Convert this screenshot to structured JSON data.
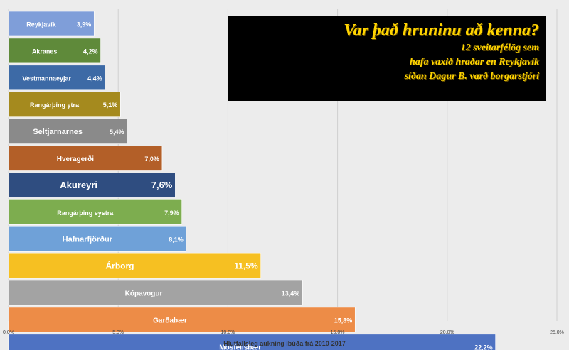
{
  "title_box": {
    "title": "Var það hruninu að kenna?",
    "line1": "12 sveitarfélög sem",
    "line2": "hafa vaxið hraðar en Reykjavík",
    "line3": "síðan Dagur B. varð borgarstjóri"
  },
  "chart_data": {
    "type": "bar",
    "orientation": "horizontal",
    "xlabel": "Hlutfallsleg aukning íbúða frá 2010-2017",
    "xlim": [
      0,
      25
    ],
    "xticks": [
      "0,0%",
      "5,0%",
      "10,0%",
      "15,0%",
      "20,0%",
      "25,0%"
    ],
    "grid": true,
    "categories": [
      "Reykjavík",
      "Akranes",
      "Vestmannaeyjar",
      "Rangárþing ytra",
      "Seltjarnarnes",
      "Hveragerði",
      "Akureyri",
      "Rangárþing eystra",
      "Hafnarfjörður",
      "Árborg",
      "Kópavogur",
      "Garðabær",
      "Mosfellsbær"
    ],
    "values": [
      3.9,
      4.2,
      4.4,
      5.1,
      5.4,
      7.0,
      7.6,
      7.9,
      8.1,
      11.5,
      13.4,
      15.8,
      22.2
    ],
    "value_labels": [
      "3,9%",
      "4,2%",
      "4,4%",
      "5,1%",
      "5,4%",
      "7,0%",
      "7,6%",
      "7,9%",
      "8,1%",
      "11,5%",
      "13,4%",
      "15,8%",
      "22,2%"
    ],
    "colors": [
      "#7f9ed9",
      "#5f8a3a",
      "#3d6aa6",
      "#a58a1e",
      "#8a8a8a",
      "#b35f28",
      "#2f4d80",
      "#7dad4f",
      "#6fa1d8",
      "#f6c022",
      "#a3a3a3",
      "#ed8c47",
      "#4e72c2"
    ]
  }
}
